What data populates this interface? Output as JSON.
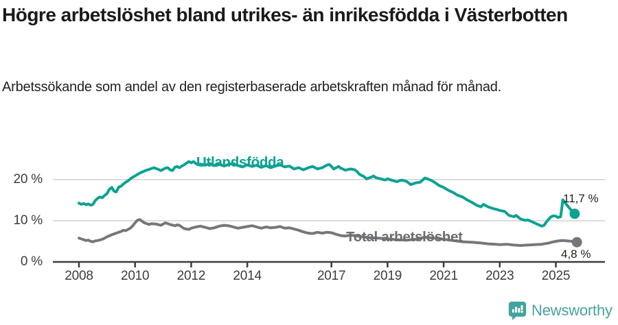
{
  "header": {
    "title": "Högre arbetslöshet bland utrikes- än inrikesfödda i Västerbotten",
    "subtitle": "Arbetssökande som andel av den registerbaserade arbetskraften månad för månad."
  },
  "chart_data": {
    "type": "line",
    "title": "Högre arbetslöshet bland utrikes- än inrikesfödda i Västerbotten",
    "subtitle": "Arbetssökande som andel av den registerbaserade arbetskraften månad för månad.",
    "unit": "%",
    "x_axis": {
      "lim": [
        2007.07,
        2026.75
      ],
      "ticks": [
        2008,
        2010,
        2012,
        2014,
        2017,
        2019,
        2021,
        2023,
        2025
      ]
    },
    "y_axis": {
      "lim": [
        0,
        26
      ],
      "ticks": [
        {
          "v": 0,
          "label": "0 %"
        },
        {
          "v": 10,
          "label": "10 %"
        },
        {
          "v": 20,
          "label": "20 %"
        }
      ],
      "grid": true
    },
    "colors": {
      "foreign_born": "#0ba292",
      "total": "#77767a",
      "grid": "#dcdcdc",
      "axis": "#3c3c3c"
    },
    "series": [
      {
        "name": "Utlandsfödda",
        "color": "#0ba292",
        "end_label": "11,7 %",
        "end_value": 11.7,
        "points": [
          [
            2008.0,
            14.3
          ],
          [
            2008.08,
            14.0
          ],
          [
            2008.17,
            14.2
          ],
          [
            2008.25,
            13.9
          ],
          [
            2008.33,
            14.1
          ],
          [
            2008.42,
            13.8
          ],
          [
            2008.5,
            14.0
          ],
          [
            2008.58,
            14.9
          ],
          [
            2008.67,
            15.5
          ],
          [
            2008.75,
            15.8
          ],
          [
            2008.83,
            15.6
          ],
          [
            2008.92,
            16.2
          ],
          [
            2009.0,
            16.6
          ],
          [
            2009.08,
            17.6
          ],
          [
            2009.17,
            18.1
          ],
          [
            2009.25,
            17.2
          ],
          [
            2009.33,
            17.0
          ],
          [
            2009.42,
            18.2
          ],
          [
            2009.5,
            18.4
          ],
          [
            2009.58,
            18.9
          ],
          [
            2009.67,
            19.4
          ],
          [
            2009.75,
            19.7
          ],
          [
            2009.83,
            20.2
          ],
          [
            2009.92,
            20.6
          ],
          [
            2010.0,
            20.9
          ],
          [
            2010.17,
            21.6
          ],
          [
            2010.33,
            22.1
          ],
          [
            2010.5,
            22.5
          ],
          [
            2010.67,
            22.9
          ],
          [
            2010.83,
            22.5
          ],
          [
            2010.92,
            22.2
          ],
          [
            2011.08,
            22.8
          ],
          [
            2011.17,
            22.9
          ],
          [
            2011.25,
            22.4
          ],
          [
            2011.33,
            22.2
          ],
          [
            2011.42,
            23.0
          ],
          [
            2011.5,
            23.2
          ],
          [
            2011.58,
            22.9
          ],
          [
            2011.67,
            23.3
          ],
          [
            2011.75,
            23.6
          ],
          [
            2011.83,
            24.0
          ],
          [
            2011.92,
            24.4
          ],
          [
            2012.0,
            24.1
          ],
          [
            2012.08,
            24.4
          ],
          [
            2012.17,
            23.9
          ],
          [
            2012.25,
            23.6
          ],
          [
            2012.33,
            23.8
          ],
          [
            2012.5,
            23.5
          ],
          [
            2012.67,
            23.9
          ],
          [
            2012.83,
            23.4
          ],
          [
            2013.0,
            23.8
          ],
          [
            2013.17,
            23.3
          ],
          [
            2013.33,
            23.7
          ],
          [
            2013.5,
            23.9
          ],
          [
            2013.67,
            23.4
          ],
          [
            2013.83,
            23.1
          ],
          [
            2014.0,
            23.6
          ],
          [
            2014.17,
            23.2
          ],
          [
            2014.33,
            23.5
          ],
          [
            2014.5,
            23.0
          ],
          [
            2014.67,
            23.4
          ],
          [
            2014.83,
            22.9
          ],
          [
            2015.0,
            23.3
          ],
          [
            2015.17,
            23.6
          ],
          [
            2015.33,
            23.1
          ],
          [
            2015.5,
            23.3
          ],
          [
            2015.67,
            22.6
          ],
          [
            2015.83,
            22.9
          ],
          [
            2016.0,
            22.4
          ],
          [
            2016.17,
            22.9
          ],
          [
            2016.33,
            23.2
          ],
          [
            2016.5,
            22.6
          ],
          [
            2016.67,
            22.9
          ],
          [
            2016.83,
            23.5
          ],
          [
            2016.92,
            23.7
          ],
          [
            2017.0,
            23.2
          ],
          [
            2017.08,
            22.6
          ],
          [
            2017.17,
            22.9
          ],
          [
            2017.25,
            23.2
          ],
          [
            2017.33,
            22.8
          ],
          [
            2017.5,
            22.3
          ],
          [
            2017.67,
            22.6
          ],
          [
            2017.83,
            22.4
          ],
          [
            2017.92,
            21.9
          ],
          [
            2018.0,
            21.3
          ],
          [
            2018.17,
            20.7
          ],
          [
            2018.25,
            20.2
          ],
          [
            2018.42,
            20.6
          ],
          [
            2018.5,
            20.9
          ],
          [
            2018.58,
            20.5
          ],
          [
            2018.75,
            20.2
          ],
          [
            2018.92,
            19.9
          ],
          [
            2019.0,
            20.2
          ],
          [
            2019.17,
            19.8
          ],
          [
            2019.33,
            19.5
          ],
          [
            2019.5,
            19.9
          ],
          [
            2019.67,
            19.6
          ],
          [
            2019.83,
            18.8
          ],
          [
            2020.0,
            19.2
          ],
          [
            2020.17,
            19.4
          ],
          [
            2020.33,
            20.4
          ],
          [
            2020.5,
            20.0
          ],
          [
            2020.67,
            19.4
          ],
          [
            2020.83,
            18.6
          ],
          [
            2021.0,
            18.1
          ],
          [
            2021.17,
            17.4
          ],
          [
            2021.33,
            16.9
          ],
          [
            2021.5,
            16.2
          ],
          [
            2021.67,
            15.8
          ],
          [
            2021.83,
            15.1
          ],
          [
            2022.0,
            14.5
          ],
          [
            2022.17,
            13.8
          ],
          [
            2022.33,
            13.4
          ],
          [
            2022.42,
            14.0
          ],
          [
            2022.58,
            13.4
          ],
          [
            2022.75,
            13.0
          ],
          [
            2022.92,
            12.7
          ],
          [
            2023.0,
            12.5
          ],
          [
            2023.17,
            12.3
          ],
          [
            2023.33,
            11.3
          ],
          [
            2023.5,
            11.0
          ],
          [
            2023.58,
            11.3
          ],
          [
            2023.75,
            10.4
          ],
          [
            2023.92,
            10.1
          ],
          [
            2024.0,
            10.2
          ],
          [
            2024.17,
            9.7
          ],
          [
            2024.33,
            9.2
          ],
          [
            2024.5,
            8.7
          ],
          [
            2024.58,
            8.9
          ],
          [
            2024.67,
            9.8
          ],
          [
            2024.83,
            11.0
          ],
          [
            2024.92,
            11.2
          ],
          [
            2025.0,
            11.1
          ],
          [
            2025.08,
            10.8
          ],
          [
            2025.17,
            11.0
          ],
          [
            2025.25,
            15.1
          ],
          [
            2025.42,
            13.6
          ],
          [
            2025.58,
            12.3
          ],
          [
            2025.67,
            11.7
          ]
        ]
      },
      {
        "name": "Total arbetslöshet",
        "color": "#77767a",
        "end_label": "4,8 %",
        "end_value": 4.8,
        "points": [
          [
            2008.0,
            5.8
          ],
          [
            2008.08,
            5.6
          ],
          [
            2008.17,
            5.4
          ],
          [
            2008.25,
            5.2
          ],
          [
            2008.33,
            5.3
          ],
          [
            2008.42,
            5.0
          ],
          [
            2008.5,
            4.9
          ],
          [
            2008.58,
            5.1
          ],
          [
            2008.67,
            5.2
          ],
          [
            2008.83,
            5.5
          ],
          [
            2008.92,
            5.8
          ],
          [
            2009.0,
            6.1
          ],
          [
            2009.17,
            6.6
          ],
          [
            2009.33,
            7.0
          ],
          [
            2009.5,
            7.4
          ],
          [
            2009.58,
            7.7
          ],
          [
            2009.67,
            7.6
          ],
          [
            2009.83,
            8.2
          ],
          [
            2009.92,
            8.8
          ],
          [
            2010.0,
            9.5
          ],
          [
            2010.08,
            10.1
          ],
          [
            2010.17,
            10.3
          ],
          [
            2010.25,
            9.9
          ],
          [
            2010.33,
            9.5
          ],
          [
            2010.5,
            9.1
          ],
          [
            2010.58,
            9.3
          ],
          [
            2010.75,
            9.2
          ],
          [
            2010.92,
            8.9
          ],
          [
            2011.0,
            9.2
          ],
          [
            2011.08,
            9.5
          ],
          [
            2011.25,
            9.1
          ],
          [
            2011.42,
            8.8
          ],
          [
            2011.5,
            9.0
          ],
          [
            2011.58,
            8.9
          ],
          [
            2011.75,
            8.1
          ],
          [
            2011.92,
            7.9
          ],
          [
            2012.0,
            8.2
          ],
          [
            2012.17,
            8.5
          ],
          [
            2012.33,
            8.7
          ],
          [
            2012.5,
            8.4
          ],
          [
            2012.67,
            8.1
          ],
          [
            2012.83,
            8.3
          ],
          [
            2013.0,
            8.7
          ],
          [
            2013.17,
            8.9
          ],
          [
            2013.33,
            8.8
          ],
          [
            2013.5,
            8.5
          ],
          [
            2013.67,
            8.2
          ],
          [
            2013.83,
            8.4
          ],
          [
            2014.0,
            8.6
          ],
          [
            2014.17,
            8.8
          ],
          [
            2014.33,
            8.5
          ],
          [
            2014.5,
            8.2
          ],
          [
            2014.67,
            8.5
          ],
          [
            2014.83,
            8.3
          ],
          [
            2015.0,
            8.4
          ],
          [
            2015.17,
            8.6
          ],
          [
            2015.33,
            8.2
          ],
          [
            2015.5,
            8.3
          ],
          [
            2015.67,
            8.0
          ],
          [
            2015.83,
            7.7
          ],
          [
            2016.0,
            7.3
          ],
          [
            2016.17,
            7.0
          ],
          [
            2016.33,
            6.9
          ],
          [
            2016.5,
            7.2
          ],
          [
            2016.67,
            7.0
          ],
          [
            2016.83,
            7.2
          ],
          [
            2017.0,
            7.1
          ],
          [
            2017.17,
            6.7
          ],
          [
            2017.33,
            6.4
          ],
          [
            2017.5,
            6.3
          ],
          [
            2017.67,
            6.5
          ],
          [
            2017.83,
            6.4
          ],
          [
            2018.0,
            6.2
          ],
          [
            2018.33,
            5.9
          ],
          [
            2018.67,
            5.8
          ],
          [
            2019.0,
            5.6
          ],
          [
            2019.33,
            5.4
          ],
          [
            2019.67,
            5.3
          ],
          [
            2020.0,
            5.5
          ],
          [
            2020.33,
            6.0
          ],
          [
            2020.67,
            5.8
          ],
          [
            2021.0,
            5.5
          ],
          [
            2021.33,
            5.2
          ],
          [
            2021.67,
            4.9
          ],
          [
            2022.0,
            4.8
          ],
          [
            2022.33,
            4.6
          ],
          [
            2022.58,
            4.4
          ],
          [
            2022.83,
            4.3
          ],
          [
            2023.0,
            4.2
          ],
          [
            2023.25,
            4.3
          ],
          [
            2023.5,
            4.1
          ],
          [
            2023.75,
            4.0
          ],
          [
            2024.0,
            4.1
          ],
          [
            2024.25,
            4.2
          ],
          [
            2024.5,
            4.3
          ],
          [
            2024.75,
            4.6
          ],
          [
            2024.92,
            4.9
          ],
          [
            2025.08,
            5.1
          ],
          [
            2025.25,
            5.2
          ],
          [
            2025.42,
            5.1
          ],
          [
            2025.58,
            5.0
          ],
          [
            2025.75,
            4.8
          ]
        ]
      }
    ]
  },
  "footer": {
    "brand": "Newsworthy",
    "brand_color": "#45a39e",
    "logo_icon": "newsworthy-bar-chart-bubble"
  }
}
